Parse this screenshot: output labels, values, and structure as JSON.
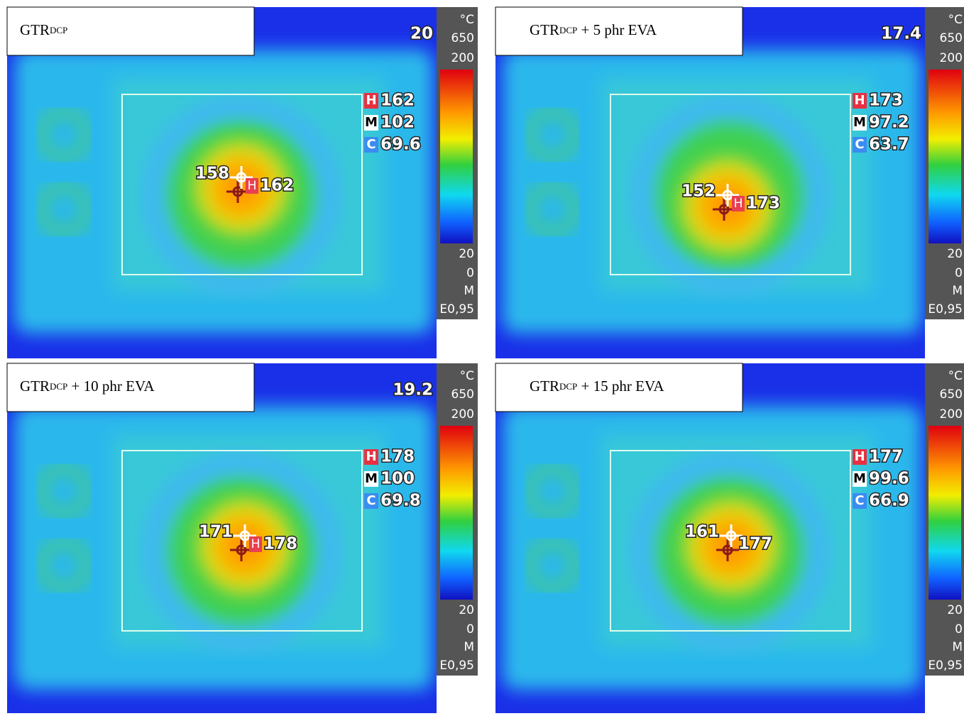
{
  "scale": {
    "unit": "°C",
    "max_range": 650,
    "top": 200,
    "bottom": 20,
    "zero": 0,
    "mode": "M",
    "emissivity": "E0,95"
  },
  "panels": [
    {
      "label": {
        "prefix": "GTR",
        "subscript": "DCP"
      },
      "corner": 20,
      "readouts": [
        {
          "tag": "H",
          "value": 162
        },
        {
          "tag": "M",
          "value": 102
        },
        {
          "tag": "C",
          "value": 69.6
        }
      ],
      "spots": [
        {
          "value": 158
        },
        {
          "value": 162,
          "tag": "H"
        }
      ]
    },
    {
      "label": {
        "prefix": "GTR",
        "subscript": "DCP",
        "suffix": " + 5 phr EVA"
      },
      "corner": 17.4,
      "readouts": [
        {
          "tag": "H",
          "value": 173
        },
        {
          "tag": "M",
          "value": 97.2
        },
        {
          "tag": "C",
          "value": 63.7
        }
      ],
      "spots": [
        {
          "value": 152
        },
        {
          "value": 173,
          "tag": "H"
        }
      ]
    },
    {
      "label": {
        "prefix": "GTR",
        "subscript": "DCP",
        "suffix": " + 10 phr EVA"
      },
      "corner": 19.2,
      "readouts": [
        {
          "tag": "H",
          "value": 178
        },
        {
          "tag": "M",
          "value": 100
        },
        {
          "tag": "C",
          "value": 69.8
        }
      ],
      "spots": [
        {
          "value": 171
        },
        {
          "value": 178,
          "tag": "H"
        }
      ]
    },
    {
      "label": {
        "prefix": "GTR",
        "subscript": "DCP",
        "suffix": " + 15 phr EVA"
      },
      "readouts": [
        {
          "tag": "H",
          "value": 177
        },
        {
          "tag": "M",
          "value": 99.6
        },
        {
          "tag": "C",
          "value": 66.9
        }
      ],
      "spots": [
        {
          "value": 161
        },
        {
          "value": 177
        }
      ]
    }
  ]
}
